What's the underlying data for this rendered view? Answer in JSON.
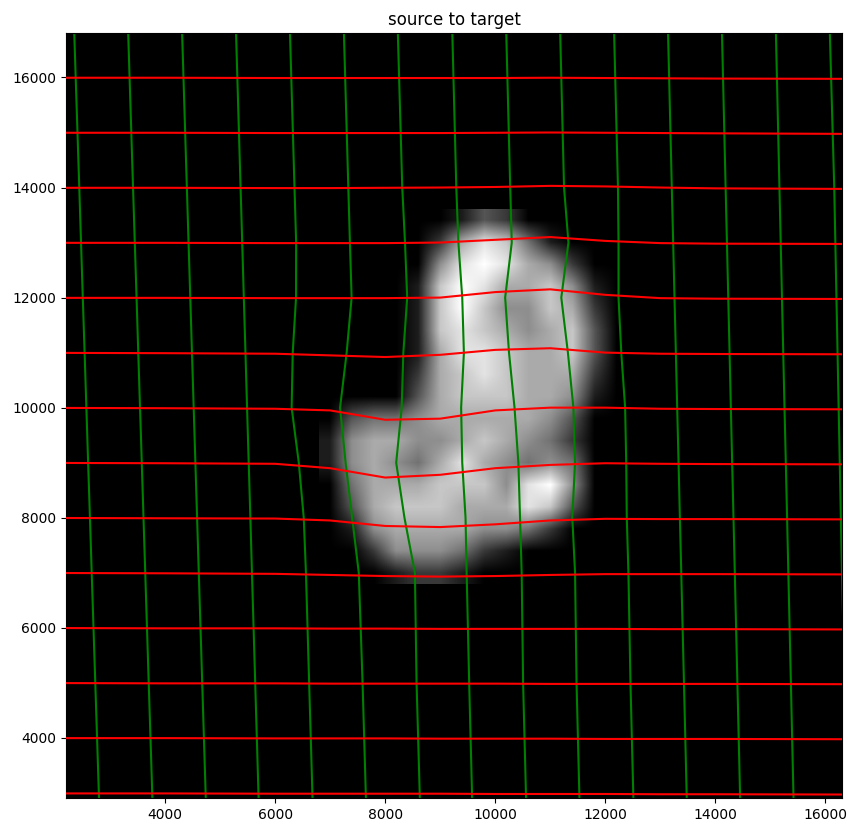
{
  "chart_data": {
    "type": "image_grid",
    "title": "source to target",
    "xlim": [
      2200,
      16300
    ],
    "ylim": [
      2900,
      16800
    ],
    "xticks": [
      4000,
      6000,
      8000,
      10000,
      12000,
      14000,
      16000
    ],
    "yticks": [
      4000,
      6000,
      8000,
      10000,
      12000,
      14000,
      16000
    ],
    "image": {
      "x": [
        7000,
        7400,
        7800,
        8200,
        8600,
        9000,
        9400,
        9800,
        10200,
        10600,
        11000,
        11400,
        11800,
        12200
      ],
      "y": [
        13400,
        13000,
        12600,
        12200,
        11800,
        11400,
        11000,
        10600,
        10200,
        9800,
        9400,
        9000,
        8600,
        8200,
        7800,
        7400,
        7000
      ],
      "values": [
        [
          0,
          0,
          0,
          0,
          0,
          0,
          0.1,
          0.3,
          0.2,
          0,
          0,
          0,
          0,
          0
        ],
        [
          0,
          0,
          0,
          0,
          0,
          0.2,
          0.6,
          0.8,
          0.7,
          0.4,
          0.1,
          0,
          0,
          0
        ],
        [
          0,
          0,
          0,
          0,
          0,
          0.5,
          0.8,
          0.9,
          0.8,
          0.6,
          0.5,
          0.2,
          0,
          0
        ],
        [
          0,
          0,
          0,
          0,
          0.1,
          0.7,
          0.9,
          0.8,
          0.6,
          0.6,
          0.7,
          0.5,
          0.1,
          0
        ],
        [
          0,
          0,
          0,
          0,
          0.1,
          0.7,
          0.9,
          0.7,
          0.5,
          0.5,
          0.7,
          0.6,
          0.2,
          0
        ],
        [
          0,
          0,
          0,
          0,
          0.1,
          0.7,
          0.8,
          0.7,
          0.6,
          0.5,
          0.6,
          0.7,
          0.3,
          0
        ],
        [
          0,
          0,
          0,
          0,
          0.1,
          0.6,
          0.8,
          0.8,
          0.7,
          0.6,
          0.6,
          0.7,
          0.3,
          0
        ],
        [
          0,
          0,
          0,
          0,
          0.2,
          0.6,
          0.7,
          0.8,
          0.7,
          0.6,
          0.6,
          0.6,
          0.2,
          0
        ],
        [
          0,
          0,
          0,
          0,
          0.3,
          0.6,
          0.7,
          0.7,
          0.7,
          0.6,
          0.6,
          0.5,
          0.1,
          0
        ],
        [
          0,
          0.3,
          0.4,
          0.4,
          0.5,
          0.6,
          0.6,
          0.6,
          0.6,
          0.6,
          0.5,
          0.3,
          0,
          0
        ],
        [
          0.1,
          0.5,
          0.6,
          0.6,
          0.5,
          0.5,
          0.6,
          0.7,
          0.6,
          0.5,
          0.4,
          0.2,
          0,
          0
        ],
        [
          0.1,
          0.5,
          0.6,
          0.5,
          0.4,
          0.6,
          0.8,
          0.6,
          0.5,
          0.4,
          0.5,
          0.4,
          0,
          0
        ],
        [
          0,
          0.4,
          0.6,
          0.6,
          0.6,
          0.7,
          0.7,
          0.7,
          0.5,
          0.8,
          0.9,
          0.5,
          0,
          0
        ],
        [
          0,
          0.3,
          0.6,
          0.7,
          0.7,
          0.7,
          0.6,
          0.6,
          0.6,
          0.8,
          0.7,
          0.3,
          0,
          0
        ],
        [
          0,
          0.1,
          0.5,
          0.6,
          0.6,
          0.6,
          0.6,
          0.5,
          0.5,
          0.4,
          0.2,
          0,
          0,
          0
        ],
        [
          0,
          0,
          0.2,
          0.5,
          0.5,
          0.5,
          0.4,
          0.2,
          0.1,
          0,
          0,
          0,
          0,
          0
        ],
        [
          0,
          0,
          0,
          0.1,
          0.2,
          0.2,
          0.1,
          0,
          0,
          0,
          0,
          0,
          0,
          0
        ]
      ]
    },
    "horizontal": {
      "color": "red",
      "x": [
        2200,
        4000,
        6000,
        7000,
        8000,
        9000,
        10000,
        11000,
        12000,
        13000,
        14000,
        16300
      ],
      "curves": [
        [
          2990,
          2990,
          2985,
          2985,
          2985,
          2985,
          2980,
          2980,
          2980,
          2975,
          2975,
          2970
        ],
        [
          3995,
          3995,
          3990,
          3990,
          3990,
          3985,
          3985,
          3985,
          3980,
          3980,
          3980,
          3975
        ],
        [
          4995,
          4990,
          4990,
          4985,
          4985,
          4985,
          4985,
          4980,
          4980,
          4980,
          4980,
          4975
        ],
        [
          5995,
          5990,
          5990,
          5985,
          5985,
          5980,
          5980,
          5980,
          5980,
          5975,
          5975,
          5970
        ],
        [
          6995,
          6990,
          6980,
          6960,
          6940,
          6930,
          6940,
          6960,
          6975,
          6975,
          6975,
          6970
        ],
        [
          7995,
          7990,
          7985,
          7950,
          7850,
          7830,
          7880,
          7950,
          7980,
          7975,
          7975,
          7970
        ],
        [
          8995,
          8990,
          8980,
          8900,
          8730,
          8780,
          8900,
          8960,
          8990,
          8980,
          8975,
          8970
        ],
        [
          9995,
          9990,
          9980,
          9950,
          9780,
          9800,
          9950,
          10000,
          10000,
          9980,
          9975,
          9970
        ],
        [
          10995,
          10990,
          10980,
          10950,
          10920,
          10960,
          11050,
          11080,
          11000,
          10980,
          10975,
          10970
        ],
        [
          11995,
          11995,
          11990,
          11990,
          11990,
          12000,
          12100,
          12150,
          12050,
          11990,
          11980,
          11975
        ],
        [
          12995,
          12995,
          12990,
          12990,
          12990,
          13000,
          13050,
          13100,
          13030,
          12990,
          12980,
          12975
        ],
        [
          13995,
          13995,
          13990,
          13990,
          13995,
          14000,
          14010,
          14030,
          14020,
          14000,
          13985,
          13975
        ],
        [
          14995,
          14995,
          14990,
          14990,
          14990,
          14990,
          14995,
          15000,
          14995,
          14990,
          14985,
          14975
        ],
        [
          15995,
          15995,
          15990,
          15990,
          15990,
          15990,
          15990,
          15995,
          15990,
          15985,
          15980,
          15975
        ]
      ]
    },
    "vertical": {
      "color": "green",
      "y": [
        2900,
        5000,
        7000,
        8000,
        9000,
        10000,
        11000,
        12000,
        13000,
        14000,
        16800
      ],
      "curves": [
        [
          2800,
          2732,
          2667,
          2635,
          2602,
          2570,
          2538,
          2505,
          2473,
          2441,
          2350
        ],
        [
          3770,
          3703,
          3640,
          3608,
          3577,
          3545,
          3513,
          3482,
          3450,
          3418,
          3330
        ],
        [
          4740,
          4675,
          4613,
          4582,
          4551,
          4520,
          4489,
          4458,
          4427,
          4396,
          4310
        ],
        [
          5700,
          5638,
          5579,
          5550,
          5520,
          5490,
          5461,
          5431,
          5402,
          5372,
          5290
        ],
        [
          6680,
          6618,
          6560,
          6520,
          6430,
          6300,
          6320,
          6380,
          6382,
          6352,
          6270
        ],
        [
          7650,
          7589,
          7520,
          7400,
          7280,
          7180,
          7300,
          7390,
          7359,
          7330,
          7250
        ],
        [
          8630,
          8570,
          8540,
          8350,
          8200,
          8300,
          8330,
          8400,
          8360,
          8310,
          8230
        ],
        [
          9580,
          9526,
          9480,
          9460,
          9400,
          9380,
          9430,
          9400,
          9330,
          9292,
          9220
        ],
        [
          10560,
          10506,
          10480,
          10450,
          10420,
          10350,
          10250,
          10180,
          10300,
          10272,
          10200
        ],
        [
          11530,
          11477,
          11450,
          11400,
          11450,
          11420,
          11320,
          11200,
          11330,
          11250,
          11180
        ],
        [
          12510,
          12457,
          12420,
          12390,
          12380,
          12360,
          12290,
          12240,
          12240,
          12230,
          12160
        ],
        [
          13480,
          13429,
          13380,
          13355,
          13331,
          13306,
          13282,
          13257,
          13233,
          13208,
          13140
        ],
        [
          14450,
          14400,
          14353,
          14329,
          14305,
          14281,
          14258,
          14234,
          14210,
          14186,
          14120
        ],
        [
          15420,
          15372,
          15326,
          15303,
          15280,
          15256,
          15233,
          15210,
          15187,
          15164,
          15100
        ],
        [
          16400,
          16350,
          16300,
          16280,
          16260,
          16240,
          16220,
          16200,
          16180,
          16160,
          16080
        ]
      ]
    }
  }
}
